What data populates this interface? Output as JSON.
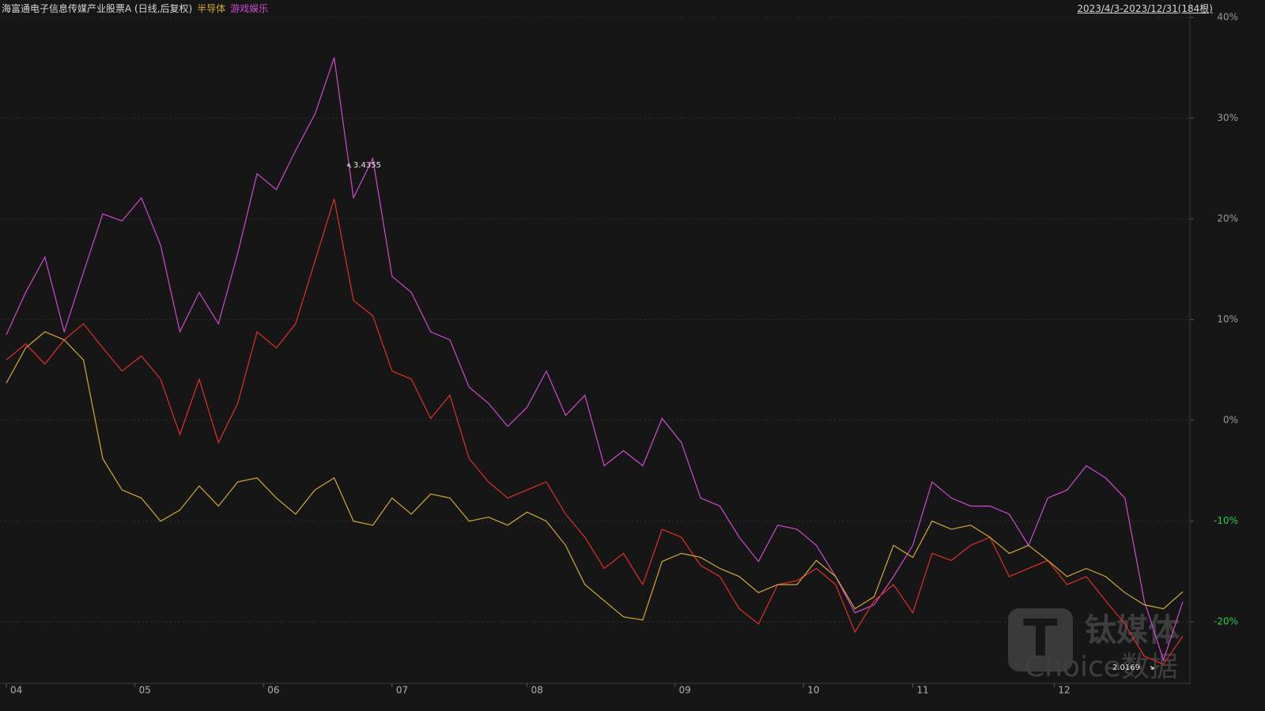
{
  "chart_data": {
    "type": "line",
    "title": "海富通电子信息传媒产业股票A (日线,后复权)",
    "date_range": "2023/4/3-2023/12/31(184根)",
    "x": [
      0,
      3,
      6,
      9,
      12,
      15,
      18,
      21,
      24,
      27,
      30,
      33,
      36,
      39,
      42,
      45,
      48,
      51,
      54,
      57,
      60,
      63,
      66,
      69,
      72,
      75,
      78,
      81,
      84,
      87,
      90,
      93,
      96,
      99,
      102,
      105,
      108,
      111,
      114,
      117,
      120,
      123,
      126,
      129,
      132,
      135,
      138,
      141,
      144,
      147,
      150,
      153,
      156,
      159,
      162,
      165,
      168,
      171,
      174,
      177,
      180,
      183
    ],
    "xlim": [
      0,
      183
    ],
    "xticks": [
      {
        "value": 0,
        "label": "04"
      },
      {
        "value": 20,
        "label": "05"
      },
      {
        "value": 40,
        "label": "06"
      },
      {
        "value": 60,
        "label": "07"
      },
      {
        "value": 81,
        "label": "08"
      },
      {
        "value": 104,
        "label": "09"
      },
      {
        "value": 124,
        "label": "10"
      },
      {
        "value": 141,
        "label": "11"
      },
      {
        "value": 163,
        "label": "12"
      }
    ],
    "ylim": [
      -26.1,
      40.4
    ],
    "yticks": [
      {
        "value": 40,
        "label": "40%"
      },
      {
        "value": 30,
        "label": "30%"
      },
      {
        "value": 20,
        "label": "20%"
      },
      {
        "value": 10,
        "label": "10%"
      },
      {
        "value": 0,
        "label": "0%"
      },
      {
        "value": -10,
        "label": "-10%"
      },
      {
        "value": -20,
        "label": "-20%"
      }
    ],
    "grid": true,
    "series": [
      {
        "name": "海富通电子信息传媒产业股票A",
        "color": "#e0302a",
        "values": [
          6,
          7.6,
          5.6,
          8,
          9.6,
          7.2,
          4.9,
          6.4,
          4.1,
          -1.4,
          4.1,
          -2.2,
          1.7,
          8.8,
          7.2,
          9.6,
          15.8,
          22,
          11.9,
          10.4,
          4.9,
          4.1,
          0.2,
          2.5,
          -3.8,
          -6.1,
          -7.7,
          -6.9,
          -6.1,
          -9.3,
          -11.6,
          -14.7,
          -13.2,
          -16.3,
          -10.8,
          -11.6,
          -14.4,
          -15.5,
          -18.7,
          -20.2,
          -16.3,
          -15.9,
          -14.7,
          -16.3,
          -21,
          -17.9,
          -16.3,
          -19.1,
          -13.2,
          -13.9,
          -12.4,
          -11.6,
          -15.5,
          -14.7,
          -13.9,
          -16.3,
          -15.5,
          -17.9,
          -20.2,
          -23.4,
          -24.2,
          -21.4
        ]
      },
      {
        "name": "半导体",
        "color": "#d4a838",
        "values": [
          3.7,
          7.2,
          8.8,
          8,
          6,
          -3.8,
          -6.9,
          -7.7,
          -10,
          -8.9,
          -6.5,
          -8.5,
          -6.1,
          -5.7,
          -7.7,
          -9.3,
          -6.9,
          -5.7,
          -10,
          -10.4,
          -7.7,
          -9.3,
          -7.3,
          -7.7,
          -10,
          -9.6,
          -10.4,
          -9.1,
          -10,
          -12.4,
          -16.3,
          -17.9,
          -19.5,
          -19.8,
          -14,
          -13.2,
          -13.6,
          -14.7,
          -15.5,
          -17.1,
          -16.3,
          -16.3,
          -13.9,
          -15.5,
          -18.7,
          -17.5,
          -12.4,
          -13.6,
          -10,
          -10.8,
          -10.4,
          -11.6,
          -13.2,
          -12.4,
          -13.9,
          -15.5,
          -14.7,
          -15.5,
          -17.1,
          -18.3,
          -18.7,
          -17
        ]
      },
      {
        "name": "游戏娱乐",
        "color": "#d04ad0",
        "values": [
          8.5,
          12.7,
          16.2,
          8.8,
          14.7,
          20.5,
          19.8,
          22.1,
          17.4,
          8.8,
          12.7,
          9.6,
          16.6,
          24.5,
          22.9,
          26.8,
          30.4,
          36,
          22.1,
          26,
          14.3,
          12.7,
          8.8,
          8,
          3.3,
          1.7,
          -0.6,
          1.3,
          4.9,
          0.5,
          2.5,
          -4.5,
          -3,
          -4.5,
          0.2,
          -2.2,
          -7.7,
          -8.5,
          -11.6,
          -14,
          -10.4,
          -10.8,
          -12.4,
          -15.5,
          -19.1,
          -18.3,
          -15.5,
          -12.4,
          -6.1,
          -7.7,
          -8.5,
          -8.5,
          -9.3,
          -12.4,
          -7.7,
          -6.9,
          -4.5,
          -5.7,
          -7.7,
          -17.9,
          -23.8,
          -18
        ]
      }
    ],
    "annotations": [
      "3.4355",
      "2.0169"
    ],
    "watermark": [
      "钛媒体",
      "Choice数据"
    ]
  }
}
